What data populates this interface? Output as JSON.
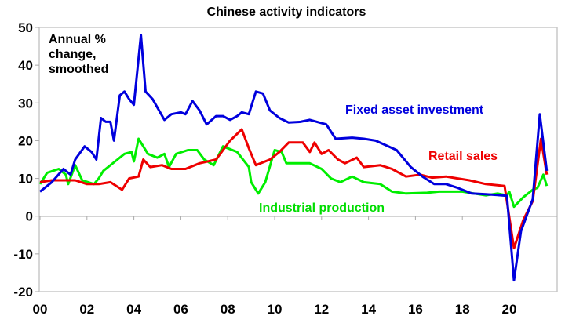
{
  "chart_data": {
    "type": "line",
    "title": "Chinese activity indicators",
    "annotation": [
      "Annual %",
      "change,",
      "smoothed"
    ],
    "xlabel": "",
    "ylabel": "Annual % change, smoothed",
    "ylim": [
      -20,
      50
    ],
    "xlim": [
      2000,
      2021.9
    ],
    "yticks": [
      -20,
      -10,
      0,
      10,
      20,
      30,
      40,
      50
    ],
    "xticks": [
      {
        "v": 2000,
        "label": "00"
      },
      {
        "v": 2002,
        "label": "02"
      },
      {
        "v": 2004,
        "label": "04"
      },
      {
        "v": 2006,
        "label": "06"
      },
      {
        "v": 2008,
        "label": "08"
      },
      {
        "v": 2010,
        "label": "10"
      },
      {
        "v": 2012,
        "label": "12"
      },
      {
        "v": 2014,
        "label": "14"
      },
      {
        "v": 2016,
        "label": "16"
      },
      {
        "v": 2018,
        "label": "18"
      },
      {
        "v": 2020,
        "label": "20"
      }
    ],
    "grid": false,
    "series": [
      {
        "name": "Fixed asset investment",
        "color": "#0000dd",
        "points": [
          [
            2000,
            6.5
          ],
          [
            2000.5,
            9
          ],
          [
            2001,
            12.5
          ],
          [
            2001.3,
            11
          ],
          [
            2001.5,
            15
          ],
          [
            2001.9,
            18.5
          ],
          [
            2002.2,
            17
          ],
          [
            2002.4,
            15
          ],
          [
            2002.6,
            26
          ],
          [
            2002.8,
            25
          ],
          [
            2003.0,
            25
          ],
          [
            2003.15,
            20
          ],
          [
            2003.4,
            32
          ],
          [
            2003.6,
            33
          ],
          [
            2003.8,
            31
          ],
          [
            2004.0,
            29.5
          ],
          [
            2004.3,
            48
          ],
          [
            2004.5,
            33
          ],
          [
            2004.8,
            31
          ],
          [
            2005.3,
            25.5
          ],
          [
            2005.6,
            27
          ],
          [
            2006.0,
            27.5
          ],
          [
            2006.2,
            27
          ],
          [
            2006.5,
            30.5
          ],
          [
            2006.8,
            28
          ],
          [
            2007.1,
            24.3
          ],
          [
            2007.5,
            26.5
          ],
          [
            2007.8,
            26.5
          ],
          [
            2008.1,
            25.5
          ],
          [
            2008.4,
            26.5
          ],
          [
            2008.6,
            27.5
          ],
          [
            2008.9,
            27
          ],
          [
            2009.2,
            33
          ],
          [
            2009.5,
            32.5
          ],
          [
            2009.8,
            28
          ],
          [
            2010.2,
            26
          ],
          [
            2010.6,
            24.8
          ],
          [
            2011.1,
            25
          ],
          [
            2011.5,
            25.5
          ],
          [
            2012.2,
            24.3
          ],
          [
            2012.6,
            20.5
          ],
          [
            2013.3,
            20.8
          ],
          [
            2013.8,
            20.5
          ],
          [
            2014.3,
            20
          ],
          [
            2015.2,
            17.5
          ],
          [
            2015.8,
            13
          ],
          [
            2016.3,
            10.5
          ],
          [
            2016.8,
            8.5
          ],
          [
            2017.3,
            8.5
          ],
          [
            2017.8,
            7.5
          ],
          [
            2018.4,
            6
          ],
          [
            2019.0,
            5.8
          ],
          [
            2019.5,
            5.6
          ],
          [
            2019.9,
            5.4
          ],
          [
            2020.2,
            -17
          ],
          [
            2020.5,
            -4
          ],
          [
            2021.0,
            4.5
          ],
          [
            2021.3,
            27
          ],
          [
            2021.6,
            12
          ]
        ]
      },
      {
        "name": "Retail sales",
        "color": "#ee0000",
        "points": [
          [
            2000,
            9
          ],
          [
            2000.5,
            9.5
          ],
          [
            2001,
            9.5
          ],
          [
            2001.5,
            9.5
          ],
          [
            2002,
            8.5
          ],
          [
            2002.5,
            8.5
          ],
          [
            2003,
            9
          ],
          [
            2003.5,
            7
          ],
          [
            2003.8,
            10
          ],
          [
            2004.2,
            10.5
          ],
          [
            2004.4,
            15
          ],
          [
            2004.7,
            13
          ],
          [
            2005.2,
            13.5
          ],
          [
            2005.6,
            12.5
          ],
          [
            2006.2,
            12.5
          ],
          [
            2006.8,
            14
          ],
          [
            2007.5,
            15
          ],
          [
            2008.1,
            20
          ],
          [
            2008.6,
            23
          ],
          [
            2008.9,
            18
          ],
          [
            2009.2,
            13.5
          ],
          [
            2009.8,
            15
          ],
          [
            2010.2,
            17
          ],
          [
            2010.6,
            19.5
          ],
          [
            2011.2,
            19.5
          ],
          [
            2011.5,
            17
          ],
          [
            2011.7,
            19.5
          ],
          [
            2012,
            16.5
          ],
          [
            2012.3,
            17.5
          ],
          [
            2012.7,
            15
          ],
          [
            2013,
            14
          ],
          [
            2013.5,
            15.5
          ],
          [
            2013.8,
            13
          ],
          [
            2014.5,
            13.5
          ],
          [
            2015,
            12.5
          ],
          [
            2015.6,
            10.5
          ],
          [
            2016.2,
            11
          ],
          [
            2016.7,
            10.2
          ],
          [
            2017.3,
            10.5
          ],
          [
            2017.8,
            10
          ],
          [
            2018.3,
            9.5
          ],
          [
            2019,
            8.5
          ],
          [
            2019.8,
            8
          ],
          [
            2020.2,
            -8.5
          ],
          [
            2020.6,
            -1
          ],
          [
            2021.0,
            4
          ],
          [
            2021.35,
            20.5
          ],
          [
            2021.6,
            11
          ]
        ]
      },
      {
        "name": "Industrial production",
        "color": "#00ee00",
        "points": [
          [
            2000,
            8.5
          ],
          [
            2000.3,
            11.5
          ],
          [
            2000.8,
            12.5
          ],
          [
            2001.1,
            11
          ],
          [
            2001.2,
            8.5
          ],
          [
            2001.5,
            13.5
          ],
          [
            2001.8,
            9.5
          ],
          [
            2002.3,
            8.5
          ],
          [
            2002.5,
            10
          ],
          [
            2002.7,
            12
          ],
          [
            2003.3,
            15
          ],
          [
            2003.6,
            16.5
          ],
          [
            2003.9,
            17
          ],
          [
            2004.0,
            14.5
          ],
          [
            2004.2,
            20.5
          ],
          [
            2004.6,
            16.5
          ],
          [
            2005.0,
            15.5
          ],
          [
            2005.3,
            16.5
          ],
          [
            2005.5,
            13
          ],
          [
            2005.8,
            16.5
          ],
          [
            2006.3,
            17.5
          ],
          [
            2006.7,
            17.5
          ],
          [
            2007.0,
            15
          ],
          [
            2007.4,
            13.5
          ],
          [
            2007.8,
            18.5
          ],
          [
            2008.4,
            17
          ],
          [
            2008.9,
            13
          ],
          [
            2009.0,
            9
          ],
          [
            2009.3,
            6
          ],
          [
            2009.6,
            9
          ],
          [
            2010.0,
            17.5
          ],
          [
            2010.3,
            17
          ],
          [
            2010.5,
            14
          ],
          [
            2011.2,
            14
          ],
          [
            2011.5,
            14
          ],
          [
            2012,
            12.5
          ],
          [
            2012.4,
            10
          ],
          [
            2012.8,
            9
          ],
          [
            2013.3,
            10.5
          ],
          [
            2013.8,
            9
          ],
          [
            2014.5,
            8.5
          ],
          [
            2015,
            6.5
          ],
          [
            2015.6,
            6
          ],
          [
            2016.5,
            6.2
          ],
          [
            2017,
            6.5
          ],
          [
            2017.5,
            6.5
          ],
          [
            2018,
            6.5
          ],
          [
            2018.5,
            6
          ],
          [
            2019,
            5.5
          ],
          [
            2019.5,
            6
          ],
          [
            2019.9,
            5.5
          ],
          [
            2020.0,
            6.5
          ],
          [
            2020.2,
            2.5
          ],
          [
            2020.6,
            5
          ],
          [
            2021.0,
            7
          ],
          [
            2021.2,
            7.5
          ],
          [
            2021.45,
            11
          ],
          [
            2021.6,
            8
          ]
        ]
      }
    ]
  }
}
